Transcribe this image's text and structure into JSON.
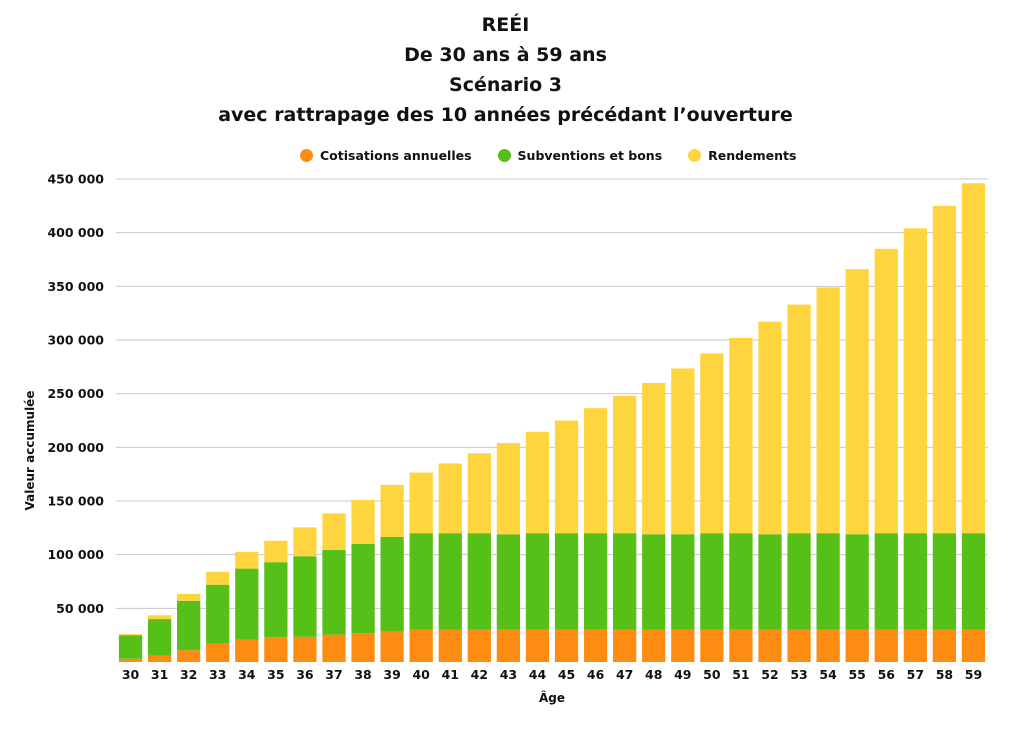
{
  "colors": {
    "cotisations": "#FF8C12",
    "subventions": "#56BF18",
    "rendements": "#FFD53F",
    "grid": "#C8C8C8"
  },
  "chart_data": {
    "type": "bar",
    "stacked": true,
    "title_lines": [
      "REÉI",
      "De 30 ans à 59 ans",
      "Scénario 3",
      "avec rattrapage des 10 années précédant l’ouverture"
    ],
    "xlabel": "Âge",
    "ylabel": "Valeur accumulée",
    "ylim": [
      0,
      450000
    ],
    "yticks": [
      50000,
      100000,
      150000,
      200000,
      250000,
      300000,
      350000,
      400000,
      450000
    ],
    "ytick_labels": [
      "50 000",
      "100 000",
      "150 000",
      "200 000",
      "250 000",
      "300 000",
      "350 000",
      "400 000",
      "450 000"
    ],
    "grid": true,
    "legend_position": "top",
    "categories": [
      "30",
      "31",
      "32",
      "33",
      "34",
      "35",
      "36",
      "37",
      "38",
      "39",
      "40",
      "41",
      "42",
      "43",
      "44",
      "45",
      "46",
      "47",
      "48",
      "49",
      "50",
      "51",
      "52",
      "53",
      "54",
      "55",
      "56",
      "57",
      "58",
      "59"
    ],
    "series": [
      {
        "name": "Cotisations annuelles",
        "color_key": "cotisations",
        "values": [
          3000,
          6000,
          11000,
          17000,
          21000,
          23000,
          23500,
          25500,
          27000,
          28500,
          30000,
          30000,
          30000,
          30000,
          30000,
          30000,
          30000,
          30000,
          30000,
          30000,
          30000,
          30000,
          30000,
          30000,
          30000,
          30000,
          30000,
          30000,
          30000,
          30000
        ]
      },
      {
        "name": "Subventions et bons",
        "color_key": "subventions",
        "values": [
          22000,
          34000,
          46000,
          55000,
          66000,
          70000,
          75000,
          79000,
          83000,
          88000,
          90000,
          90000,
          90000,
          89000,
          90000,
          90000,
          90000,
          90000,
          89000,
          89000,
          90000,
          90000,
          89000,
          90000,
          90000,
          89000,
          90000,
          90000,
          90000,
          90000
        ]
      },
      {
        "name": "Rendements",
        "color_key": "rendements",
        "values": [
          1000,
          3500,
          6500,
          12000,
          15500,
          20000,
          27000,
          34000,
          41000,
          48500,
          56500,
          65000,
          74500,
          85000,
          94500,
          105000,
          116500,
          128000,
          141000,
          154500,
          167500,
          182000,
          198000,
          213000,
          229000,
          247000,
          265000,
          284000,
          305000,
          326000
        ]
      }
    ]
  }
}
